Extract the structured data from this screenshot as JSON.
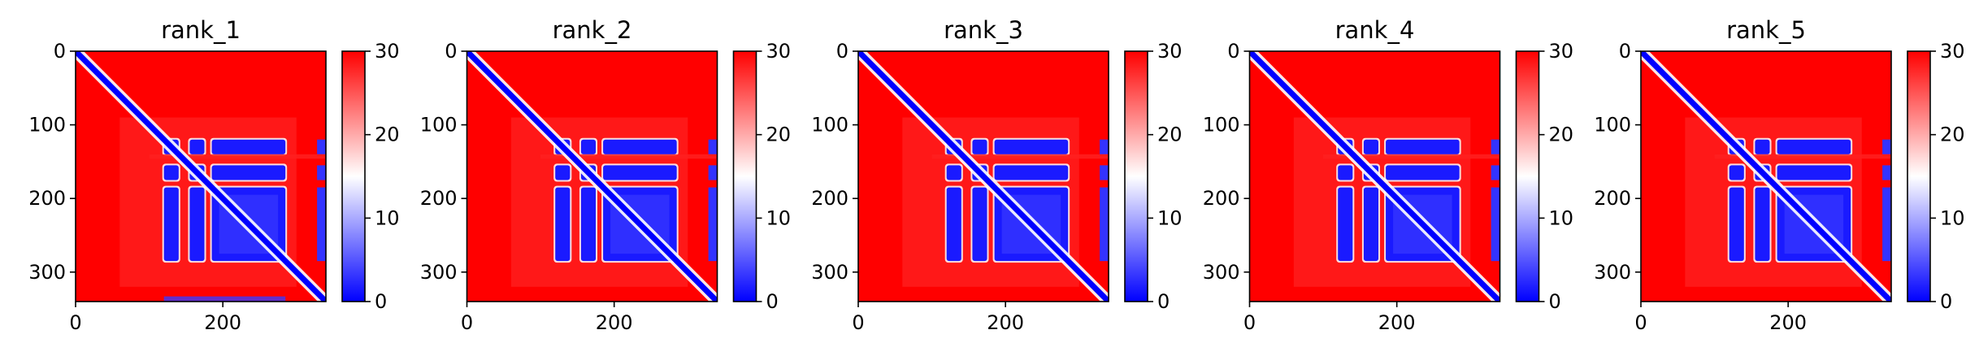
{
  "chart_data": [
    {
      "type": "heatmap",
      "title": "rank_1",
      "n_residues": 340,
      "colormap": "bwr",
      "colorbar_range": [
        0,
        30
      ],
      "colorbar_ticks": [
        "0",
        "10",
        "20",
        "30"
      ],
      "x_ticks": [
        "0",
        "200"
      ],
      "y_ticks": [
        "0",
        "100",
        "200",
        "300"
      ],
      "low_blocks": [
        [
          120,
          140
        ],
        [
          155,
          175
        ],
        [
          185,
          285
        ]
      ],
      "bottom_strip": true
    },
    {
      "type": "heatmap",
      "title": "rank_2",
      "n_residues": 340,
      "colormap": "bwr",
      "colorbar_range": [
        0,
        30
      ],
      "colorbar_ticks": [
        "0",
        "10",
        "20",
        "30"
      ],
      "x_ticks": [
        "0",
        "200"
      ],
      "y_ticks": [
        "0",
        "100",
        "200",
        "300"
      ],
      "low_blocks": [
        [
          120,
          140
        ],
        [
          155,
          175
        ],
        [
          185,
          285
        ]
      ],
      "bottom_strip": false
    },
    {
      "type": "heatmap",
      "title": "rank_3",
      "n_residues": 340,
      "colormap": "bwr",
      "colorbar_range": [
        0,
        30
      ],
      "colorbar_ticks": [
        "0",
        "10",
        "20",
        "30"
      ],
      "x_ticks": [
        "0",
        "200"
      ],
      "y_ticks": [
        "0",
        "100",
        "200",
        "300"
      ],
      "low_blocks": [
        [
          120,
          140
        ],
        [
          155,
          175
        ],
        [
          185,
          285
        ]
      ],
      "bottom_strip": false
    },
    {
      "type": "heatmap",
      "title": "rank_4",
      "n_residues": 340,
      "colormap": "bwr",
      "colorbar_range": [
        0,
        30
      ],
      "colorbar_ticks": [
        "0",
        "10",
        "20",
        "30"
      ],
      "x_ticks": [
        "0",
        "200"
      ],
      "y_ticks": [
        "0",
        "100",
        "200",
        "300"
      ],
      "low_blocks": [
        [
          120,
          140
        ],
        [
          155,
          175
        ],
        [
          185,
          285
        ]
      ],
      "bottom_strip": false
    },
    {
      "type": "heatmap",
      "title": "rank_5",
      "n_residues": 340,
      "colormap": "bwr",
      "colorbar_range": [
        0,
        30
      ],
      "colorbar_ticks": [
        "0",
        "10",
        "20",
        "30"
      ],
      "x_ticks": [
        "0",
        "200"
      ],
      "y_ticks": [
        "0",
        "100",
        "200",
        "300"
      ],
      "low_blocks": [
        [
          120,
          140
        ],
        [
          155,
          175
        ],
        [
          185,
          285
        ]
      ],
      "bottom_strip": false
    }
  ],
  "colors": {
    "high": "#ff0000",
    "mid": "#ffffff",
    "low": "#0000ff"
  }
}
